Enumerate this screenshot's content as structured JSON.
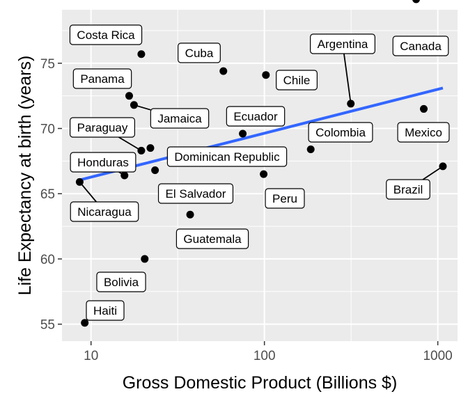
{
  "chart_data": {
    "type": "scatter",
    "xlabel": "Gross Domestic Product (Billions $)",
    "ylabel": "Life Expectancy at birth (years)",
    "x_scale": "log10",
    "xlim": [
      6.8,
      1300
    ],
    "ylim": [
      53.7,
      79.1
    ],
    "x_ticks": [
      10,
      100,
      1000
    ],
    "x_tick_labels": [
      "10",
      "100",
      "1000"
    ],
    "y_ticks": [
      55,
      60,
      65,
      70,
      75
    ],
    "y_tick_labels": [
      "55",
      "60",
      "65",
      "70",
      "75"
    ],
    "grid": true,
    "colors": {
      "panel": "#ebebeb",
      "grid": "#ffffff",
      "point": "#000000",
      "trend": "#3366ff"
    },
    "points": [
      {
        "label": "Haiti",
        "x": 9.2,
        "y": 55.1
      },
      {
        "label": "Nicaragua",
        "x": 8.6,
        "y": 65.9
      },
      {
        "label": "Honduras",
        "x": 15.6,
        "y": 66.4
      },
      {
        "label": "Paraguay",
        "x": 19.5,
        "y": 68.3
      },
      {
        "label": "Panama",
        "x": 16.6,
        "y": 72.5
      },
      {
        "label": "Jamaica",
        "x": 17.7,
        "y": 71.8
      },
      {
        "label": "Costa Rica",
        "x": 19.5,
        "y": 75.7
      },
      {
        "label": "Bolivia",
        "x": 20.4,
        "y": 60.0
      },
      {
        "label": "Dominican Republic",
        "x": 22.0,
        "y": 68.5
      },
      {
        "label": "El Salvador",
        "x": 23.4,
        "y": 66.8
      },
      {
        "label": "Guatemala",
        "x": 37.3,
        "y": 63.4
      },
      {
        "label": "Cuba",
        "x": 58.0,
        "y": 74.4
      },
      {
        "label": "Ecuador",
        "x": 75.0,
        "y": 69.6
      },
      {
        "label": "Peru",
        "x": 99.0,
        "y": 66.5
      },
      {
        "label": "Chile",
        "x": 102.0,
        "y": 74.1
      },
      {
        "label": "Colombia",
        "x": 185.0,
        "y": 68.4
      },
      {
        "label": "Argentina",
        "x": 315.0,
        "y": 71.9
      },
      {
        "label": "Canada",
        "x": 750.0,
        "y": 79.9
      },
      {
        "label": "Mexico",
        "x": 830.0,
        "y": 71.5
      },
      {
        "label": "Brazil",
        "x": 1070.0,
        "y": 67.1
      }
    ],
    "trend_line": {
      "type": "linear fit",
      "x": [
        8.6,
        1070
      ],
      "y": [
        66.05,
        73.1
      ]
    }
  }
}
